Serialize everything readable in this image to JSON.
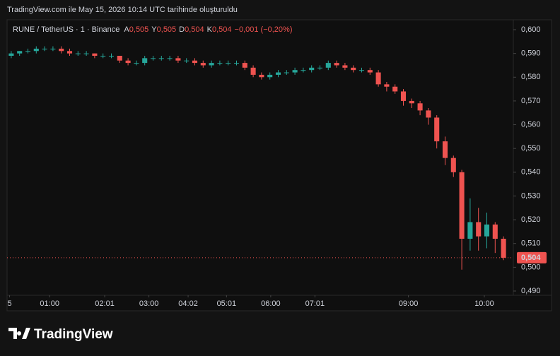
{
  "header": {
    "title": "TradingView.com ile May 15, 2026 10:14 UTC tarihinde oluşturuldu"
  },
  "logo": "TradingView",
  "chart_data": {
    "type": "candlestick",
    "symbol": "RUNE / TetherUS · 1 · Binance",
    "ohlc_labels": [
      {
        "key": "A",
        "value": "0,505"
      },
      {
        "key": "Y",
        "value": "0,505"
      },
      {
        "key": "D",
        "value": "0,504"
      },
      {
        "key": "K",
        "value": "0,504"
      }
    ],
    "change": "−0,001 (−0,20%)",
    "up_color": "#26a69a",
    "down_color": "#ef5350",
    "last_price": {
      "value": 0.504,
      "label": "0,504"
    },
    "xlim": [
      0,
      60
    ],
    "xticks": [
      {
        "value": 0.3,
        "label": "5"
      },
      {
        "value": 5.1,
        "label": "01:00"
      },
      {
        "value": 11.7,
        "label": "02:01"
      },
      {
        "value": 17,
        "label": "03:00"
      },
      {
        "value": 21.7,
        "label": "04:02"
      },
      {
        "value": 26.3,
        "label": "05:01"
      },
      {
        "value": 31.6,
        "label": "06:00"
      },
      {
        "value": 36.9,
        "label": "07:01"
      },
      {
        "value": 48.1,
        "label": "09:00"
      },
      {
        "value": 57.2,
        "label": "10:00"
      }
    ],
    "ylim": [
      0.49,
      0.6
    ],
    "yticks": [
      {
        "value": 0.49,
        "label": "0,490"
      },
      {
        "value": 0.5,
        "label": "0,500"
      },
      {
        "value": 0.51,
        "label": "0,510"
      },
      {
        "value": 0.52,
        "label": "0,520"
      },
      {
        "value": 0.53,
        "label": "0,530"
      },
      {
        "value": 0.54,
        "label": "0,540"
      },
      {
        "value": 0.55,
        "label": "0,550"
      },
      {
        "value": 0.56,
        "label": "0,560"
      },
      {
        "value": 0.57,
        "label": "0,570"
      },
      {
        "value": 0.58,
        "label": "0,580"
      },
      {
        "value": 0.59,
        "label": "0,590"
      },
      {
        "value": 0.6,
        "label": "0,600"
      }
    ],
    "open": [
      0.589,
      0.59,
      0.591,
      0.591,
      0.592,
      0.592,
      0.592,
      0.591,
      0.59,
      0.59,
      0.59,
      0.589,
      0.589,
      0.589,
      0.587,
      0.586,
      0.586,
      0.588,
      0.588,
      0.588,
      0.588,
      0.587,
      0.587,
      0.586,
      0.585,
      0.586,
      0.586,
      0.586,
      0.586,
      0.584,
      0.581,
      0.58,
      0.581,
      0.582,
      0.582,
      0.583,
      0.583,
      0.584,
      0.584,
      0.586,
      0.585,
      0.584,
      0.583,
      0.583,
      0.582,
      0.577,
      0.576,
      0.574,
      0.57,
      0.569,
      0.566,
      0.563,
      0.553,
      0.546,
      0.54,
      0.512,
      0.519,
      0.513,
      0.518,
      0.512
    ],
    "high": [
      0.591,
      0.591,
      0.592,
      0.593,
      0.593,
      0.593,
      0.593,
      0.592,
      0.591,
      0.591,
      0.59,
      0.59,
      0.59,
      0.589,
      0.588,
      0.587,
      0.589,
      0.589,
      0.589,
      0.589,
      0.589,
      0.588,
      0.588,
      0.587,
      0.587,
      0.587,
      0.587,
      0.587,
      0.587,
      0.585,
      0.582,
      0.582,
      0.583,
      0.583,
      0.584,
      0.584,
      0.585,
      0.585,
      0.587,
      0.587,
      0.586,
      0.585,
      0.584,
      0.584,
      0.583,
      0.578,
      0.577,
      0.575,
      0.571,
      0.57,
      0.567,
      0.564,
      0.555,
      0.547,
      0.541,
      0.529,
      0.525,
      0.523,
      0.519,
      0.513
    ],
    "low": [
      0.588,
      0.589,
      0.59,
      0.59,
      0.591,
      0.591,
      0.59,
      0.589,
      0.589,
      0.589,
      0.588,
      0.588,
      0.588,
      0.586,
      0.585,
      0.585,
      0.585,
      0.587,
      0.587,
      0.587,
      0.586,
      0.586,
      0.585,
      0.584,
      0.584,
      0.585,
      0.585,
      0.585,
      0.583,
      0.58,
      0.579,
      0.579,
      0.58,
      0.581,
      0.581,
      0.582,
      0.582,
      0.583,
      0.583,
      0.584,
      0.583,
      0.582,
      0.582,
      0.581,
      0.576,
      0.574,
      0.573,
      0.568,
      0.567,
      0.564,
      0.56,
      0.55,
      0.543,
      0.538,
      0.499,
      0.507,
      0.507,
      0.508,
      0.506,
      0.503
    ],
    "close": [
      0.59,
      0.591,
      0.591,
      0.592,
      0.592,
      0.592,
      0.591,
      0.59,
      0.59,
      0.59,
      0.589,
      0.589,
      0.589,
      0.587,
      0.586,
      0.586,
      0.588,
      0.588,
      0.588,
      0.588,
      0.587,
      0.587,
      0.586,
      0.585,
      0.586,
      0.586,
      0.586,
      0.586,
      0.584,
      0.581,
      0.58,
      0.581,
      0.582,
      0.582,
      0.583,
      0.583,
      0.584,
      0.584,
      0.586,
      0.585,
      0.584,
      0.583,
      0.583,
      0.582,
      0.577,
      0.576,
      0.574,
      0.57,
      0.569,
      0.566,
      0.563,
      0.553,
      0.546,
      0.54,
      0.512,
      0.519,
      0.513,
      0.518,
      0.512,
      0.504
    ]
  }
}
